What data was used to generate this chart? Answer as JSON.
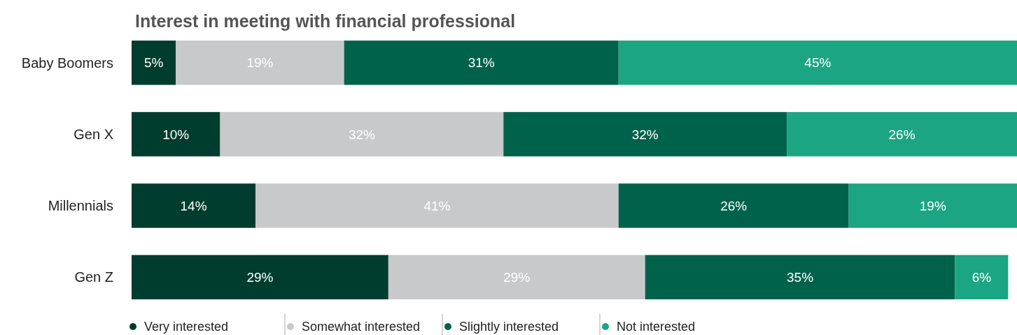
{
  "chart_data": {
    "type": "bar",
    "orientation": "horizontal",
    "stacked": true,
    "title": "Interest in meeting with financial professional",
    "categories": [
      "Baby Boomers",
      "Gen X",
      "Millennials",
      "Gen Z"
    ],
    "series": [
      {
        "name": "Very interested",
        "color": "#003d2e",
        "values": [
          5,
          10,
          14,
          29
        ],
        "value_labels": [
          "5%",
          "10%",
          "14%",
          "29%"
        ]
      },
      {
        "name": "Somewhat interested",
        "color": "#c8c9cb",
        "values": [
          19,
          32,
          41,
          29
        ],
        "value_labels": [
          "19%",
          "32%",
          "41%",
          "29%"
        ]
      },
      {
        "name": "Slightly interested",
        "color": "#00624b",
        "values": [
          31,
          32,
          26,
          35
        ],
        "value_labels": [
          "31%",
          "32%",
          "26%",
          "35%"
        ]
      },
      {
        "name": "Not interested",
        "color": "#1ba583",
        "values": [
          45,
          26,
          19,
          6
        ],
        "value_labels": [
          "45%",
          "26%",
          "19%",
          "6%"
        ]
      }
    ],
    "legend": "bottom"
  }
}
